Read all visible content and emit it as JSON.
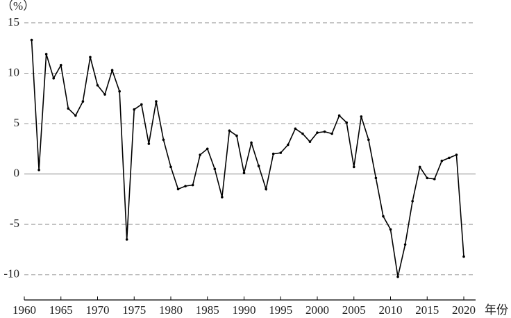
{
  "chart_data": {
    "type": "line",
    "y_unit_label": "（%）",
    "x_label": "年份",
    "x": [
      1961,
      1962,
      1963,
      1964,
      1965,
      1966,
      1967,
      1968,
      1969,
      1970,
      1971,
      1972,
      1973,
      1974,
      1975,
      1976,
      1977,
      1978,
      1979,
      1980,
      1981,
      1982,
      1983,
      1984,
      1985,
      1986,
      1987,
      1988,
      1989,
      1990,
      1991,
      1992,
      1993,
      1994,
      1995,
      1996,
      1997,
      1998,
      1999,
      2000,
      2001,
      2002,
      2003,
      2004,
      2005,
      2006,
      2007,
      2008,
      2009,
      2010,
      2011,
      2012,
      2013,
      2014,
      2015,
      2016,
      2017,
      2018,
      2019,
      2020
    ],
    "values": [
      13.3,
      0.4,
      11.9,
      9.5,
      10.8,
      6.5,
      5.8,
      7.2,
      11.6,
      8.8,
      7.9,
      10.3,
      8.2,
      -6.5,
      6.4,
      6.9,
      3.0,
      7.2,
      3.4,
      0.7,
      -1.5,
      -1.2,
      -1.1,
      1.9,
      2.5,
      0.5,
      -2.3,
      4.3,
      3.8,
      0.1,
      3.1,
      0.8,
      -1.5,
      2.0,
      2.1,
      2.9,
      4.5,
      4.0,
      3.2,
      4.1,
      4.2,
      4.0,
      5.8,
      5.1,
      0.7,
      5.7,
      3.4,
      -0.4,
      -4.2,
      -5.5,
      -10.2,
      -7.0,
      -2.7,
      0.7,
      -0.4,
      -0.5,
      1.3,
      1.6,
      1.9,
      -8.2
    ],
    "color": "#000000",
    "xlim": [
      1960,
      2020
    ],
    "xticks": [
      1960,
      1965,
      1970,
      1975,
      1980,
      1985,
      1990,
      1995,
      2000,
      2005,
      2010,
      2015,
      2020
    ],
    "ylim": [
      -12.5,
      15.2
    ],
    "yticks": [
      -10,
      -5,
      0,
      5,
      10,
      15
    ],
    "grid": true
  }
}
